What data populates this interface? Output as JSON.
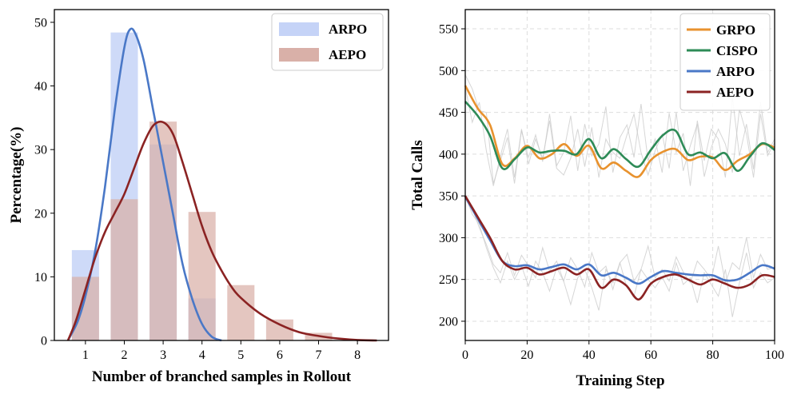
{
  "chart_data": [
    {
      "type": "bar",
      "title": "",
      "xlabel": "Number of branched samples in Rollout",
      "ylabel": "Percentage(%)",
      "xlim": [
        0.2,
        8.8
      ],
      "ylim": [
        0,
        52
      ],
      "xticks": [
        1,
        2,
        3,
        4,
        5,
        6,
        7,
        8
      ],
      "yticks": [
        0,
        10,
        20,
        30,
        40,
        50
      ],
      "categories": [
        1,
        2,
        3,
        4,
        5,
        6,
        7,
        8
      ],
      "series": [
        {
          "name": "ARPO",
          "values": [
            14.2,
            48.4,
            30.8,
            6.6,
            0,
            0,
            0,
            0
          ],
          "bar_color": "#c5d3f7",
          "curve_color": "#4a78c7"
        },
        {
          "name": "AEPO",
          "values": [
            10.0,
            22.2,
            34.4,
            20.2,
            8.7,
            3.3,
            1.2,
            0
          ],
          "bar_color": "#d9b0a8",
          "curve_color": "#8b2323"
        }
      ],
      "fit_curves": [
        {
          "name": "ARPO",
          "points": [
            [
              0.55,
              0
            ],
            [
              0.8,
              3
            ],
            [
              1.0,
              7
            ],
            [
              1.25,
              14
            ],
            [
              1.5,
              24
            ],
            [
              1.75,
              36
            ],
            [
              2.0,
              46
            ],
            [
              2.15,
              48.9
            ],
            [
              2.3,
              48
            ],
            [
              2.5,
              44
            ],
            [
              2.75,
              36
            ],
            [
              3.0,
              28
            ],
            [
              3.25,
              20
            ],
            [
              3.5,
              12
            ],
            [
              3.75,
              6.5
            ],
            [
              4.0,
              2.6
            ],
            [
              4.25,
              0.6
            ],
            [
              4.5,
              0
            ]
          ]
        },
        {
          "name": "AEPO",
          "points": [
            [
              0.55,
              0
            ],
            [
              0.75,
              3
            ],
            [
              1.0,
              8
            ],
            [
              1.25,
              13
            ],
            [
              1.5,
              17
            ],
            [
              1.75,
              20
            ],
            [
              2.0,
              23
            ],
            [
              2.25,
              27
            ],
            [
              2.5,
              31
            ],
            [
              2.75,
              33.8
            ],
            [
              3.0,
              34.3
            ],
            [
              3.25,
              32.5
            ],
            [
              3.5,
              28
            ],
            [
              3.75,
              23
            ],
            [
              4.0,
              18
            ],
            [
              4.25,
              14
            ],
            [
              4.5,
              11
            ],
            [
              4.75,
              8.5
            ],
            [
              5.0,
              6.7
            ],
            [
              5.5,
              4.2
            ],
            [
              6.0,
              2.5
            ],
            [
              6.5,
              1.3
            ],
            [
              7.0,
              0.7
            ],
            [
              7.5,
              0.3
            ],
            [
              8.0,
              0.08
            ],
            [
              8.5,
              0
            ]
          ]
        }
      ],
      "legend": {
        "position": "top-right",
        "entries": [
          "ARPO",
          "AEPO"
        ]
      },
      "grid": false
    },
    {
      "type": "line",
      "title": "",
      "xlabel": "Training Step",
      "ylabel": "Total Calls",
      "xlim": [
        0,
        100
      ],
      "ylim": [
        177,
        573
      ],
      "xticks": [
        0,
        20,
        40,
        60,
        80,
        100
      ],
      "yticks": [
        200,
        250,
        300,
        350,
        400,
        450,
        500,
        550
      ],
      "grid": true,
      "legend": {
        "position": "top-right",
        "entries": [
          "GRPO",
          "CISPO",
          "ARPO",
          "AEPO"
        ]
      },
      "x": [
        0,
        4,
        8,
        12,
        16,
        20,
        24,
        28,
        32,
        36,
        40,
        44,
        48,
        52,
        56,
        60,
        64,
        68,
        72,
        76,
        80,
        84,
        88,
        92,
        96,
        100
      ],
      "series": [
        {
          "name": "GRPO",
          "color": "#e8922e",
          "values": [
            482,
            455,
            435,
            388,
            395,
            410,
            395,
            400,
            412,
            398,
            410,
            383,
            390,
            380,
            373,
            393,
            403,
            406,
            393,
            397,
            396,
            381,
            392,
            400,
            412,
            408
          ]
        },
        {
          "name": "CISPO",
          "color": "#2e8b57",
          "values": [
            463,
            446,
            422,
            383,
            394,
            408,
            402,
            404,
            404,
            400,
            418,
            395,
            406,
            394,
            385,
            405,
            423,
            428,
            400,
            402,
            395,
            401,
            380,
            397,
            413,
            405
          ]
        },
        {
          "name": "ARPO",
          "color": "#4a78c7",
          "values": [
            349,
            323,
            297,
            272,
            266,
            267,
            262,
            265,
            268,
            262,
            268,
            255,
            258,
            252,
            245,
            253,
            260,
            258,
            256,
            255,
            255,
            249,
            250,
            258,
            267,
            263
          ]
        },
        {
          "name": "AEPO",
          "color": "#8b2323",
          "values": [
            350,
            325,
            300,
            272,
            262,
            264,
            256,
            260,
            264,
            256,
            262,
            240,
            250,
            243,
            226,
            245,
            253,
            256,
            250,
            244,
            250,
            245,
            240,
            244,
            255,
            253
          ]
        }
      ],
      "raw_series": [
        {
          "name": "GRPO raw",
          "values": [
            495,
            478,
            452,
            450,
            365,
            392,
            420,
            365,
            430,
            388,
            418,
            395,
            440,
            383,
            375,
            395,
            430,
            385,
            432,
            372,
            418,
            402,
            395,
            423,
            448,
            402,
            375,
            404,
            424,
            383,
            450,
            380,
            410,
            436,
            373,
            408,
            430,
            412,
            378,
            454,
            424,
            372,
            448,
            398,
            414
          ]
        },
        {
          "name": "CISPO raw",
          "values": [
            480,
            438,
            462,
            404,
            362,
            398,
            430,
            372,
            428,
            396,
            423,
            391,
            448,
            386,
            402,
            446,
            380,
            436,
            398,
            412,
            457,
            378,
            420,
            435,
            396,
            460,
            392,
            418,
            378,
            449,
            402,
            425,
            362,
            440,
            392,
            430,
            418,
            372,
            468,
            398,
            436,
            382,
            462,
            402,
            418
          ]
        },
        {
          "name": "ARPO raw",
          "values": [
            348,
            335,
            312,
            292,
            268,
            258,
            282,
            255,
            279,
            266,
            252,
            288,
            260,
            272,
            248,
            276,
            262,
            241,
            282,
            258,
            266,
            238,
            270,
            280,
            248,
            262,
            290,
            252,
            262,
            248,
            277,
            259,
            246,
            272,
            262,
            250,
            290,
            246,
            270,
            262,
            300,
            252,
            280,
            262,
            265
          ]
        },
        {
          "name": "AEPO raw",
          "values": [
            350,
            328,
            316,
            288,
            264,
            246,
            272,
            250,
            266,
            242,
            272,
            258,
            236,
            264,
            248,
            220,
            252,
            262,
            240,
            213,
            262,
            246,
            270,
            240,
            230,
            262,
            250,
            240,
            253,
            236,
            270,
            244,
            252,
            222,
            258,
            244,
            230,
            262,
            205,
            246,
            282,
            240,
            258,
            246,
            252
          ]
        }
      ]
    }
  ]
}
